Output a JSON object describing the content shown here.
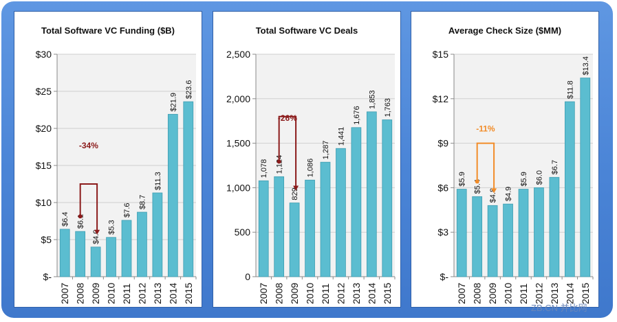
{
  "colors": {
    "bar": "#5bbdd0",
    "bar_stroke": "#3f9db1",
    "plot_bg": "#f2f2f2",
    "grid": "#cfcfcf",
    "annot_dark": "#8b1a1a",
    "annot_orange": "#f28c28",
    "frame": "#4a84d6"
  },
  "watermark": "ZB.CN 并比网",
  "chart_data": [
    {
      "type": "bar",
      "title": "Total Software VC Funding ($B)",
      "categories": [
        "2007",
        "2008",
        "2009",
        "2010",
        "2011",
        "2012",
        "2013",
        "2014",
        "2015"
      ],
      "values": [
        6.4,
        6.1,
        4.0,
        5.3,
        7.6,
        8.7,
        11.3,
        21.9,
        23.6
      ],
      "data_labels": [
        "$6.4",
        "$6.1",
        "$4.0",
        "$5.3",
        "$7.6",
        "$8.7",
        "$11.3",
        "$21.9",
        "$23.6"
      ],
      "ylim": [
        0,
        30
      ],
      "yticks": [
        0,
        5,
        10,
        15,
        20,
        25,
        30
      ],
      "ytick_labels": [
        "$-",
        "$5",
        "$10",
        "$15",
        "$20",
        "$25",
        "$30"
      ],
      "grid": true,
      "annotation": {
        "text": "-34%",
        "from": "2008",
        "to": "2009",
        "bracket_value": 12.5,
        "label_value": 17.3,
        "color": "annot_dark"
      }
    },
    {
      "type": "bar",
      "title": "Total Software VC Deals",
      "categories": [
        "2007",
        "2008",
        "2009",
        "2010",
        "2011",
        "2012",
        "2013",
        "2014",
        "2015"
      ],
      "values": [
        1078,
        1124,
        829,
        1086,
        1287,
        1441,
        1676,
        1853,
        1763
      ],
      "data_labels": [
        "1,078",
        "1,124",
        "829",
        "1,086",
        "1,287",
        "1,441",
        "1,676",
        "1,853",
        "1,763"
      ],
      "ylim": [
        0,
        2500
      ],
      "yticks": [
        0,
        500,
        1000,
        1500,
        2000,
        2500
      ],
      "ytick_labels": [
        "0",
        "500",
        "1,000",
        "1,500",
        "2,000",
        "2,500"
      ],
      "grid": true,
      "annotation": {
        "text": "-26%",
        "from": "2008",
        "to": "2009",
        "bracket_value": 1800,
        "label_value": 1750,
        "color": "annot_dark"
      }
    },
    {
      "type": "bar",
      "title": "Average Check Size ($MM)",
      "categories": [
        "2007",
        "2008",
        "2009",
        "2010",
        "2011",
        "2012",
        "2013",
        "2014",
        "2015"
      ],
      "values": [
        5.9,
        5.4,
        4.8,
        4.9,
        5.9,
        6.0,
        6.7,
        11.8,
        13.4
      ],
      "data_labels": [
        "$5.9",
        "$5.4",
        "$4.8",
        "$4.9",
        "$5.9",
        "$6.0",
        "$6.7",
        "$11.8",
        "$13.4"
      ],
      "ylim": [
        0,
        15
      ],
      "yticks": [
        0,
        3,
        6,
        9,
        12,
        15
      ],
      "ytick_labels": [
        "$-",
        "$3",
        "$6",
        "$9",
        "$12",
        "$15"
      ],
      "grid": true,
      "annotation": {
        "text": "-11%",
        "from": "2008",
        "to": "2009",
        "bracket_value": 9.0,
        "label_value": 9.8,
        "color": "annot_orange"
      }
    }
  ]
}
